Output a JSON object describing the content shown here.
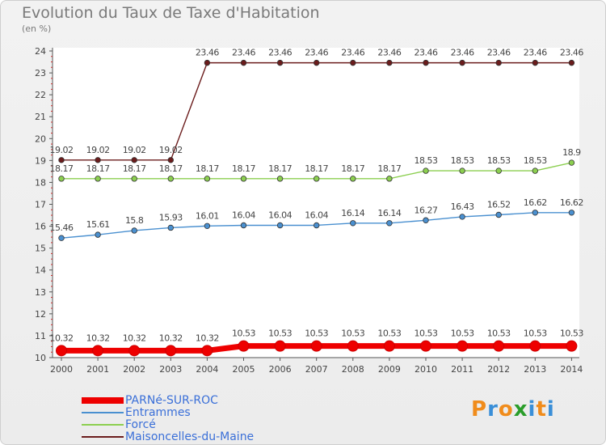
{
  "header": {
    "title": "Evolution du Taux de Taxe d'Habitation",
    "unit": "(en %)"
  },
  "logo": {
    "letters": [
      "P",
      "r",
      "o",
      "x",
      "i",
      "t",
      "i"
    ],
    "colors": [
      "#f08c1c",
      "#3a8fd8",
      "#f08c1c",
      "#2a9d2a",
      "#3a8fd8",
      "#f08c1c",
      "#3a8fd8"
    ]
  },
  "chart_data": {
    "type": "line",
    "title": "Evolution du Taux de Taxe d'Habitation",
    "ylabel": "(en %)",
    "xlabel": "",
    "ylim": [
      10,
      24
    ],
    "yticks": [
      10,
      11,
      12,
      13,
      14,
      15,
      16,
      17,
      18,
      19,
      20,
      21,
      22,
      23,
      24
    ],
    "categories": [
      "2000",
      "2001",
      "2002",
      "2003",
      "2004",
      "2005",
      "2006",
      "2007",
      "2008",
      "2009",
      "2010",
      "2011",
      "2012",
      "2013",
      "2014"
    ],
    "series": [
      {
        "name": "PARNé-SUR-ROC",
        "color": "#ee0000",
        "style": "thick",
        "values": [
          10.32,
          10.32,
          10.32,
          10.32,
          10.32,
          10.53,
          10.53,
          10.53,
          10.53,
          10.53,
          10.53,
          10.53,
          10.53,
          10.53,
          10.53
        ]
      },
      {
        "name": "Entrammes",
        "color": "#4a90d0",
        "style": "thin",
        "values": [
          15.46,
          15.61,
          15.8,
          15.93,
          16.01,
          16.04,
          16.04,
          16.04,
          16.14,
          16.14,
          16.27,
          16.43,
          16.52,
          16.62,
          16.62
        ]
      },
      {
        "name": "Forcé",
        "color": "#8ccf50",
        "style": "thin",
        "values": [
          18.17,
          18.17,
          18.17,
          18.17,
          18.17,
          18.17,
          18.17,
          18.17,
          18.17,
          18.17,
          18.53,
          18.53,
          18.53,
          18.53,
          18.9
        ]
      },
      {
        "name": "Maisoncelles-du-Maine",
        "color": "#6b1c1c",
        "style": "thin",
        "values": [
          19.02,
          19.02,
          19.02,
          19.02,
          23.46,
          23.46,
          23.46,
          23.46,
          23.46,
          23.46,
          23.46,
          23.46,
          23.46,
          23.46,
          23.46
        ]
      }
    ],
    "legend_position": "bottom-left",
    "grid": false
  }
}
